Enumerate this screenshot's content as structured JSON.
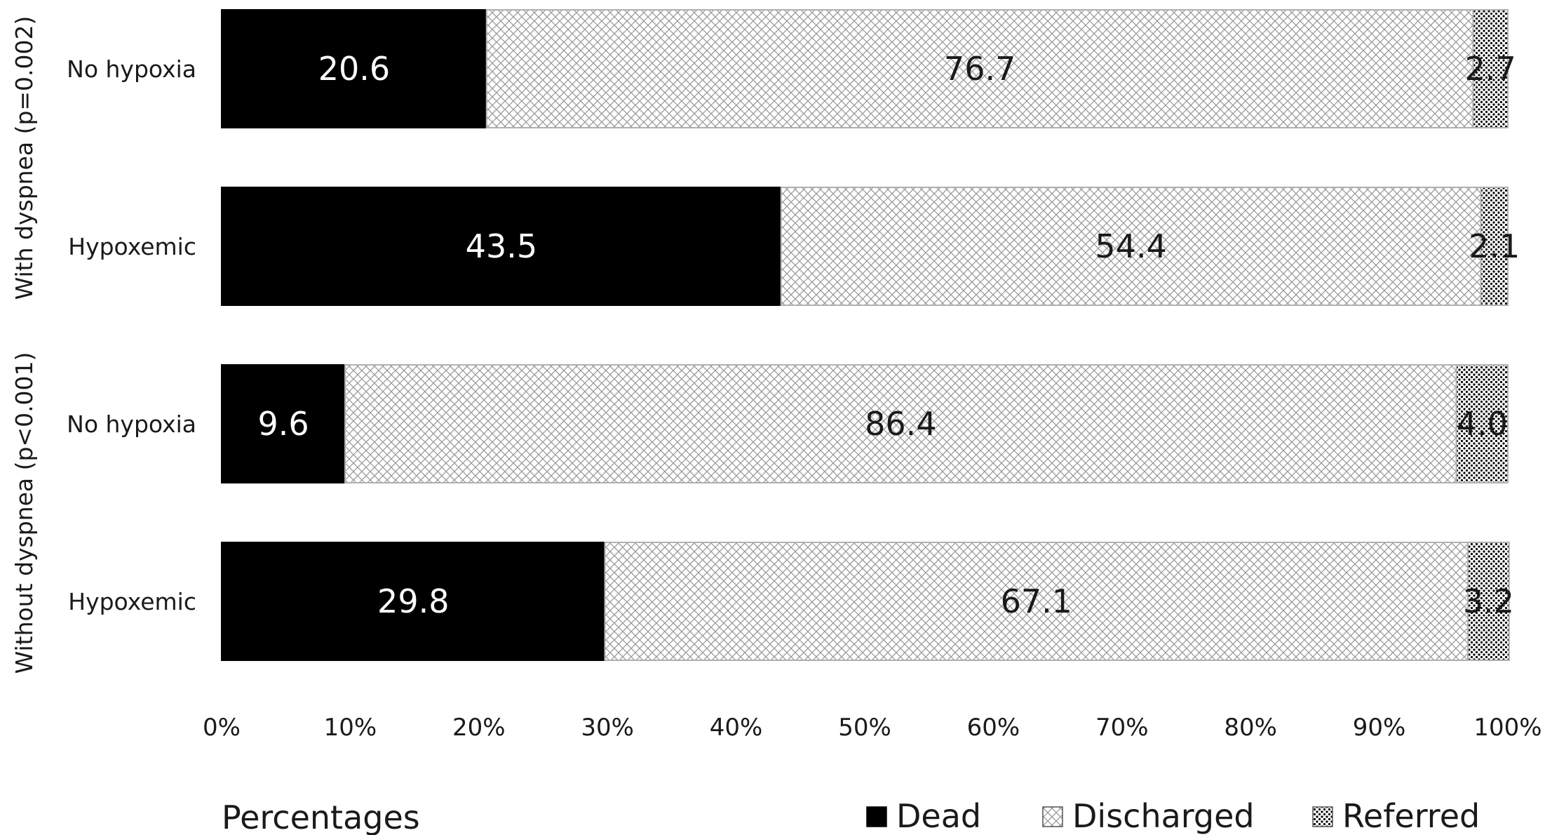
{
  "chart_data": {
    "type": "bar",
    "orientation": "horizontal",
    "stacked": true,
    "groups": [
      {
        "label": "With dyspnea (p=0.002)",
        "categories": [
          "No hypoxia",
          "Hypoxemic"
        ]
      },
      {
        "label": "Without dyspnea  (p<0.001)",
        "categories": [
          "No hypoxia",
          "Hypoxemic"
        ]
      }
    ],
    "categories": [
      "No hypoxia",
      "Hypoxemic",
      "No hypoxia",
      "Hypoxemic"
    ],
    "series": [
      {
        "name": "Dead",
        "values": [
          20.6,
          43.5,
          9.6,
          29.8
        ],
        "labels": [
          "20.6",
          "43.5",
          "9.6",
          "29.8"
        ],
        "color": "#000000",
        "pattern": "solid"
      },
      {
        "name": "Discharged",
        "values": [
          76.7,
          54.4,
          86.4,
          67.1
        ],
        "labels": [
          "76.7",
          "54.4",
          "86.4",
          "67.1"
        ],
        "color": "#ffffff",
        "pattern": "crosshatch"
      },
      {
        "name": "Referred",
        "values": [
          2.7,
          2.1,
          4.0,
          3.2
        ],
        "labels": [
          "2.7",
          "2.1",
          "4.0",
          "3.2"
        ],
        "color": "#ffffff",
        "pattern": "dots"
      }
    ],
    "xlim": [
      0,
      100
    ],
    "xticks": [
      "0%",
      "10%",
      "20%",
      "30%",
      "40%",
      "50%",
      "60%",
      "70%",
      "80%",
      "90%",
      "100%"
    ],
    "xlabel": "Percentages",
    "legend": {
      "position": "bottom-right",
      "entries": [
        "Dead",
        "Discharged",
        "Referred"
      ]
    },
    "grid": false
  }
}
